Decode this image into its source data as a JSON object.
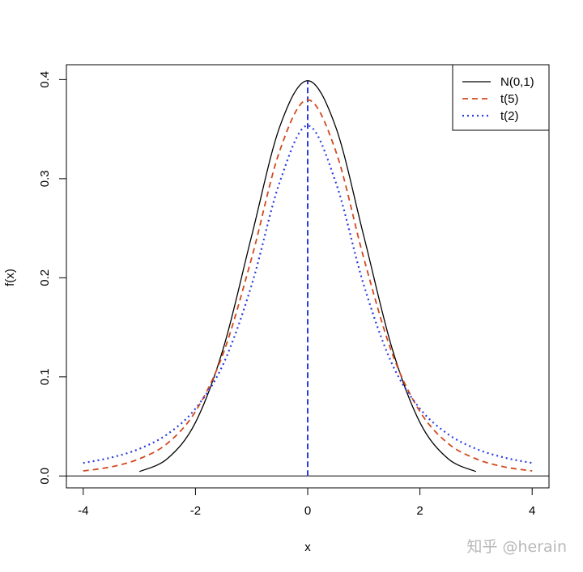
{
  "chart_data": {
    "type": "line",
    "title": "",
    "xlabel": "x",
    "ylabel": "f(x)",
    "xlim": [
      -4.3,
      4.3
    ],
    "ylim": [
      -0.012,
      0.415
    ],
    "x_ticks": [
      "-4",
      "-2",
      "0",
      "2",
      "4"
    ],
    "y_ticks": [
      "0.0",
      "0.1",
      "0.2",
      "0.3",
      "0.4"
    ],
    "grid": false,
    "legend_position": "top-right",
    "baseline_y": 0,
    "vertical_line_x": 0,
    "series": [
      {
        "name": "N(0,1)",
        "color": "#000000",
        "style": "solid",
        "x": [
          -3.0,
          -2.5,
          -2.0,
          -1.5,
          -1.0,
          -0.5,
          0.0,
          0.5,
          1.0,
          1.5,
          2.0,
          2.5,
          3.0
        ],
        "y": [
          0.0044,
          0.0175,
          0.054,
          0.1295,
          0.242,
          0.3521,
          0.3989,
          0.3521,
          0.242,
          0.1295,
          0.054,
          0.0175,
          0.0044
        ]
      },
      {
        "name": "t(5)",
        "color": "#d2491f",
        "style": "dashed",
        "x": [
          -4.0,
          -3.5,
          -3.0,
          -2.5,
          -2.0,
          -1.5,
          -1.0,
          -0.5,
          0.0,
          0.5,
          1.0,
          1.5,
          2.0,
          2.5,
          3.0,
          3.5,
          4.0
        ],
        "y": [
          0.0051,
          0.0092,
          0.0173,
          0.0329,
          0.0651,
          0.1245,
          0.2197,
          0.3279,
          0.3796,
          0.3279,
          0.2197,
          0.1245,
          0.0651,
          0.0329,
          0.0173,
          0.0092,
          0.0051
        ]
      },
      {
        "name": "t(2)",
        "color": "#2b3be0",
        "style": "dotted",
        "x": [
          -4.0,
          -3.5,
          -3.0,
          -2.5,
          -2.0,
          -1.5,
          -1.0,
          -0.5,
          0.0,
          0.5,
          1.0,
          1.5,
          2.0,
          2.5,
          3.0,
          3.5,
          4.0
        ],
        "y": [
          0.0131,
          0.0186,
          0.0274,
          0.0422,
          0.068,
          0.1135,
          0.1925,
          0.2963,
          0.3536,
          0.2963,
          0.1925,
          0.1135,
          0.068,
          0.0422,
          0.0274,
          0.0186,
          0.0131
        ]
      }
    ]
  },
  "watermark": "知乎 @herain",
  "colors": {
    "vertical_line": "#2b3be0"
  }
}
